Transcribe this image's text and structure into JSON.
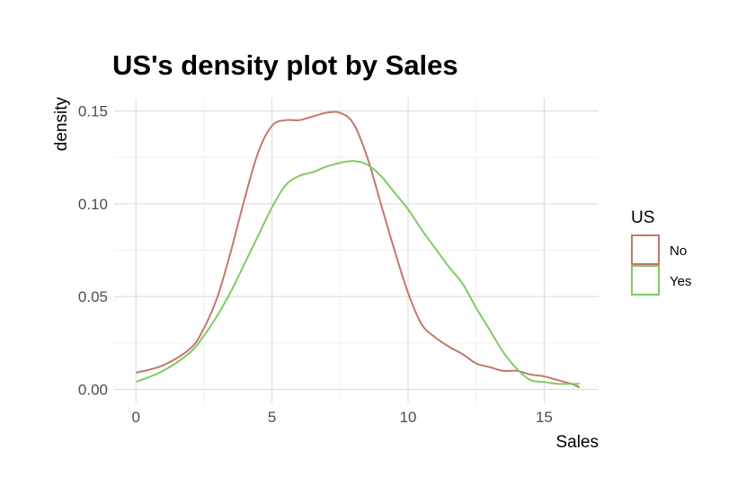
{
  "chart_data": {
    "type": "line",
    "title": "US's density plot by Sales",
    "xlabel": "Sales",
    "ylabel": "density",
    "xlim": [
      -0.8,
      17
    ],
    "ylim": [
      -0.007,
      0.157
    ],
    "x_ticks": [
      0,
      5,
      10,
      15
    ],
    "x_tick_labels": [
      "0",
      "5",
      "10",
      "15"
    ],
    "y_ticks": [
      0,
      0.05,
      0.1,
      0.15
    ],
    "y_tick_labels": [
      "0.00",
      "0.05",
      "0.10",
      "0.15"
    ],
    "grid": true,
    "legend": {
      "title": "US",
      "position": "right"
    },
    "series": [
      {
        "name": "No",
        "color": "#C0796A",
        "x": [
          0,
          1,
          2,
          2.5,
          3,
          3.5,
          4,
          4.5,
          5,
          5.5,
          6,
          6.5,
          7,
          7.5,
          8,
          8.5,
          9,
          9.5,
          10,
          10.5,
          11,
          11.5,
          12,
          12.5,
          13,
          13.5,
          14,
          14.5,
          15,
          15.5,
          16,
          16.3
        ],
        "values": [
          0.009,
          0.013,
          0.022,
          0.033,
          0.05,
          0.075,
          0.103,
          0.128,
          0.142,
          0.145,
          0.145,
          0.147,
          0.149,
          0.149,
          0.143,
          0.125,
          0.1,
          0.075,
          0.052,
          0.035,
          0.028,
          0.023,
          0.019,
          0.014,
          0.012,
          0.01,
          0.01,
          0.008,
          0.007,
          0.005,
          0.003,
          0.001
        ]
      },
      {
        "name": "Yes",
        "color": "#7FCB64",
        "x": [
          0,
          1,
          2,
          2.5,
          3,
          3.5,
          4,
          4.5,
          5,
          5.5,
          6,
          6.5,
          7,
          7.5,
          8,
          8.5,
          9,
          9.5,
          10,
          10.5,
          11,
          11.5,
          12,
          12.5,
          13,
          13.5,
          14,
          14.5,
          15,
          15.5,
          16,
          16.3
        ],
        "values": [
          0.004,
          0.01,
          0.02,
          0.029,
          0.04,
          0.053,
          0.068,
          0.083,
          0.098,
          0.11,
          0.115,
          0.117,
          0.12,
          0.122,
          0.123,
          0.121,
          0.115,
          0.106,
          0.097,
          0.086,
          0.076,
          0.066,
          0.057,
          0.044,
          0.032,
          0.02,
          0.011,
          0.005,
          0.004,
          0.003,
          0.003,
          0.003
        ]
      }
    ]
  }
}
